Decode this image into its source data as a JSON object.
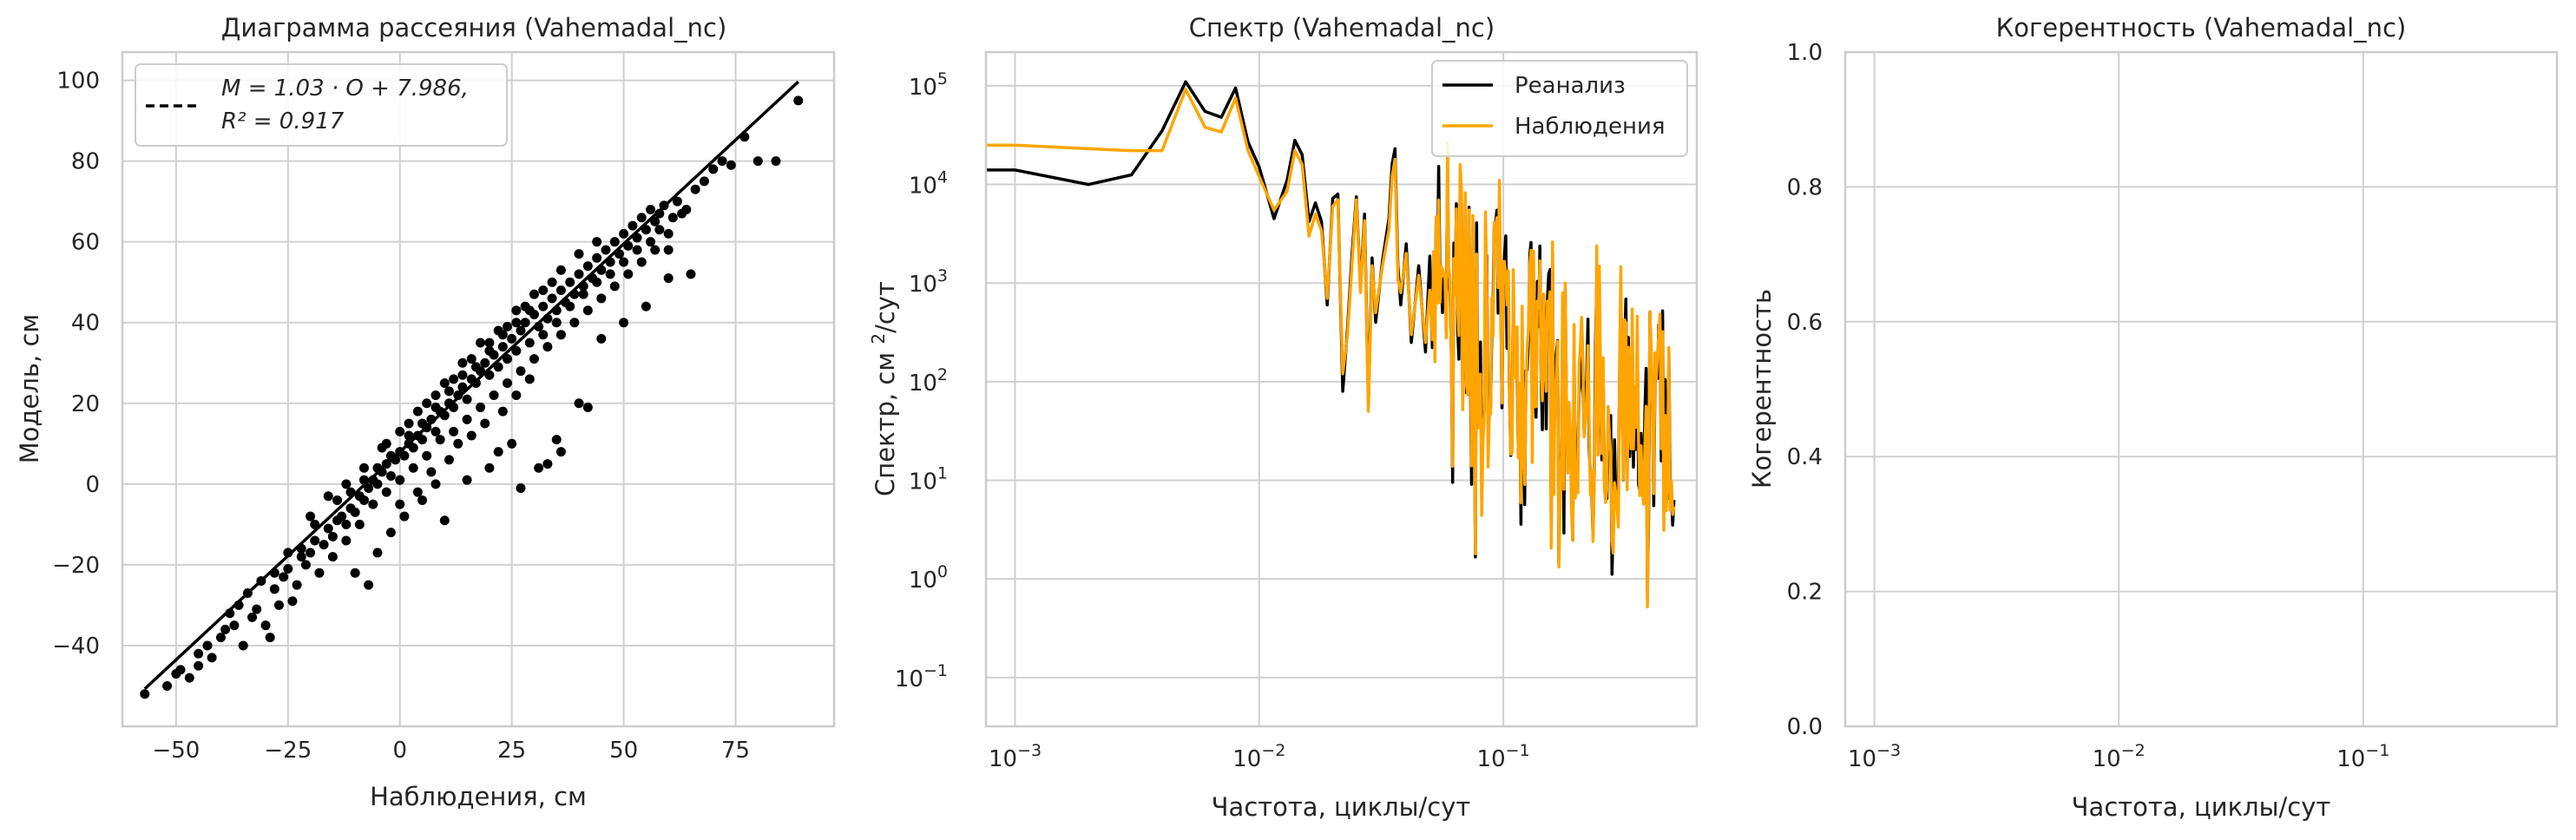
{
  "chart_data": [
    {
      "type": "scatter",
      "title": "Диаграмма рассеяния (Vahemadal_nc)",
      "xlabel": "Наблюдения, см",
      "ylabel": "Модель, см",
      "xlim": [
        -62,
        97
      ],
      "ylim": [
        -60,
        107
      ],
      "xticks": [
        -50,
        -25,
        0,
        25,
        50,
        75
      ],
      "yticks": [
        -40,
        -20,
        0,
        20,
        40,
        60,
        80,
        100
      ],
      "grid": true,
      "legend": {
        "placement": "top-left",
        "entries": [
          "M = 1.03 · O + 7.986,",
          "R² = 0.917"
        ]
      },
      "fit": {
        "slope": 1.03,
        "intercept": 7.986,
        "r2": 0.917,
        "x_range": [
          -57,
          89
        ]
      },
      "color": "#000000",
      "points": [
        [
          -57,
          -52
        ],
        [
          -52,
          -50
        ],
        [
          -50,
          -47
        ],
        [
          -49,
          -46
        ],
        [
          -47,
          -48
        ],
        [
          -45,
          -45
        ],
        [
          -43,
          -40
        ],
        [
          -42,
          -43
        ],
        [
          -39,
          -36
        ],
        [
          -37,
          -35
        ],
        [
          -36,
          -30
        ],
        [
          -34,
          -27
        ],
        [
          -32,
          -31
        ],
        [
          -31,
          -24
        ],
        [
          -29,
          -38
        ],
        [
          -28,
          -26
        ],
        [
          -26,
          -23
        ],
        [
          -25,
          -21
        ],
        [
          -23,
          -25
        ],
        [
          -22,
          -18
        ],
        [
          -20,
          -17
        ],
        [
          -19,
          -14
        ],
        [
          -17,
          -15
        ],
        [
          -16,
          -11
        ],
        [
          -15,
          -13
        ],
        [
          -14,
          -9
        ],
        [
          -13,
          -8
        ],
        [
          -12,
          -10
        ],
        [
          -11,
          -6
        ],
        [
          -10,
          -7
        ],
        [
          -9,
          -3
        ],
        [
          -8,
          -4
        ],
        [
          -7,
          -1
        ],
        [
          -6,
          1
        ],
        [
          -5,
          0
        ],
        [
          -4,
          3
        ],
        [
          -3,
          5
        ],
        [
          -2,
          2
        ],
        [
          -1,
          6
        ],
        [
          0,
          8
        ],
        [
          1,
          7
        ],
        [
          2,
          10
        ],
        [
          3,
          9
        ],
        [
          4,
          12
        ],
        [
          5,
          11
        ],
        [
          6,
          14
        ],
        [
          7,
          16
        ],
        [
          8,
          13
        ],
        [
          9,
          18
        ],
        [
          10,
          17
        ],
        [
          11,
          20
        ],
        [
          12,
          19
        ],
        [
          13,
          22
        ],
        [
          14,
          24
        ],
        [
          15,
          21
        ],
        [
          16,
          26
        ],
        [
          17,
          25
        ],
        [
          18,
          28
        ],
        [
          19,
          30
        ],
        [
          20,
          27
        ],
        [
          21,
          32
        ],
        [
          22,
          29
        ],
        [
          23,
          34
        ],
        [
          24,
          31
        ],
        [
          25,
          36
        ],
        [
          26,
          33
        ],
        [
          27,
          38
        ],
        [
          28,
          40
        ],
        [
          29,
          35
        ],
        [
          30,
          42
        ],
        [
          31,
          39
        ],
        [
          32,
          44
        ],
        [
          33,
          41
        ],
        [
          34,
          46
        ],
        [
          35,
          43
        ],
        [
          36,
          48
        ],
        [
          37,
          45
        ],
        [
          38,
          50
        ],
        [
          39,
          47
        ],
        [
          40,
          52
        ],
        [
          41,
          49
        ],
        [
          42,
          54
        ],
        [
          43,
          51
        ],
        [
          44,
          56
        ],
        [
          45,
          53
        ],
        [
          46,
          58
        ],
        [
          47,
          55
        ],
        [
          48,
          60
        ],
        [
          49,
          57
        ],
        [
          50,
          62
        ],
        [
          51,
          59
        ],
        [
          52,
          64
        ],
        [
          53,
          61
        ],
        [
          54,
          66
        ],
        [
          55,
          63
        ],
        [
          56,
          68
        ],
        [
          57,
          65
        ],
        [
          58,
          67
        ],
        [
          59,
          69
        ],
        [
          60,
          62
        ],
        [
          62,
          70
        ],
        [
          64,
          68
        ],
        [
          66,
          73
        ],
        [
          68,
          75
        ],
        [
          70,
          78
        ],
        [
          72,
          80
        ],
        [
          74,
          79
        ],
        [
          77,
          86
        ],
        [
          80,
          80
        ],
        [
          84,
          80
        ],
        [
          89,
          95
        ],
        [
          -35,
          -40
        ],
        [
          -30,
          -35
        ],
        [
          -27,
          -30
        ],
        [
          -24,
          -29
        ],
        [
          -21,
          -20
        ],
        [
          -18,
          -22
        ],
        [
          -15,
          -18
        ],
        [
          -12,
          -14
        ],
        [
          -9,
          -10
        ],
        [
          -6,
          -5
        ],
        [
          -3,
          -2
        ],
        [
          0,
          1
        ],
        [
          3,
          4
        ],
        [
          6,
          7
        ],
        [
          9,
          11
        ],
        [
          12,
          13
        ],
        [
          15,
          16
        ],
        [
          18,
          19
        ],
        [
          21,
          22
        ],
        [
          24,
          25
        ],
        [
          27,
          28
        ],
        [
          30,
          31
        ],
        [
          33,
          34
        ],
        [
          36,
          37
        ],
        [
          39,
          40
        ],
        [
          42,
          43
        ],
        [
          45,
          46
        ],
        [
          48,
          49
        ],
        [
          51,
          52
        ],
        [
          54,
          55
        ],
        [
          57,
          58
        ],
        [
          60,
          58
        ],
        [
          -20,
          -8
        ],
        [
          -16,
          -3
        ],
        [
          -12,
          0
        ],
        [
          -8,
          4
        ],
        [
          -4,
          9
        ],
        [
          0,
          13
        ],
        [
          4,
          18
        ],
        [
          8,
          22
        ],
        [
          12,
          26
        ],
        [
          16,
          31
        ],
        [
          20,
          35
        ],
        [
          24,
          39
        ],
        [
          28,
          44
        ],
        [
          32,
          48
        ],
        [
          36,
          53
        ],
        [
          40,
          57
        ],
        [
          44,
          60
        ],
        [
          -10,
          -22
        ],
        [
          -7,
          -25
        ],
        [
          -5,
          -17
        ],
        [
          -2,
          -12
        ],
        [
          1,
          -8
        ],
        [
          5,
          -4
        ],
        [
          8,
          0
        ],
        [
          10,
          -9
        ],
        [
          15,
          1
        ],
        [
          20,
          4
        ],
        [
          22,
          8
        ],
        [
          25,
          10
        ],
        [
          27,
          -1
        ],
        [
          31,
          4
        ],
        [
          33,
          5
        ],
        [
          35,
          11
        ],
        [
          36,
          8
        ],
        [
          40,
          20
        ],
        [
          42,
          19
        ],
        [
          45,
          36
        ],
        [
          50,
          40
        ],
        [
          55,
          44
        ],
        [
          60,
          51
        ],
        [
          65,
          52
        ],
        [
          -45,
          -42
        ],
        [
          -40,
          -38
        ],
        [
          -38,
          -32
        ],
        [
          -33,
          -33
        ],
        [
          -28,
          -22
        ],
        [
          -25,
          -17
        ],
        [
          -22,
          -16
        ],
        [
          -19,
          -10
        ],
        [
          -14,
          -4
        ],
        [
          -11,
          -2
        ],
        [
          -8,
          1
        ],
        [
          -5,
          4
        ],
        [
          -2,
          7
        ],
        [
          2,
          12
        ],
        [
          5,
          15
        ],
        [
          8,
          19
        ],
        [
          11,
          23
        ],
        [
          14,
          27
        ],
        [
          17,
          29
        ],
        [
          20,
          33
        ],
        [
          23,
          37
        ],
        [
          26,
          40
        ],
        [
          29,
          43
        ],
        [
          32,
          37
        ],
        [
          35,
          40
        ],
        [
          38,
          44
        ],
        [
          41,
          47
        ],
        [
          44,
          50
        ],
        [
          47,
          52
        ],
        [
          50,
          55
        ],
        [
          53,
          58
        ],
        [
          56,
          60
        ],
        [
          58,
          63
        ],
        [
          61,
          66
        ],
        [
          63,
          67
        ],
        [
          -3,
          10
        ],
        [
          2,
          15
        ],
        [
          6,
          20
        ],
        [
          10,
          25
        ],
        [
          14,
          30
        ],
        [
          18,
          35
        ],
        [
          22,
          38
        ],
        [
          26,
          43
        ],
        [
          30,
          47
        ],
        [
          34,
          50
        ],
        [
          0,
          -5
        ],
        [
          4,
          -2
        ],
        [
          7,
          3
        ],
        [
          11,
          6
        ],
        [
          13,
          10
        ],
        [
          16,
          12
        ],
        [
          19,
          15
        ],
        [
          23,
          18
        ],
        [
          26,
          22
        ],
        [
          29,
          26
        ]
      ]
    },
    {
      "type": "line",
      "title": "Спектр (Vahemadal_nc)",
      "xlabel": "Частота, циклы/сут",
      "ylabel": "Спектр, см²/сут",
      "xscale": "log",
      "yscale": "log",
      "xlim": [
        0.00076,
        0.62
      ],
      "ylim": [
        0.032,
        220000
      ],
      "xticks": [
        "10⁻³",
        "10⁻²",
        "10⁻¹"
      ],
      "yticks": [
        "10⁻¹",
        "10⁰",
        "10¹",
        "10²",
        "10³",
        "10⁴",
        "10⁵"
      ],
      "grid": true,
      "legend": {
        "placement": "top-right",
        "entries": [
          "Реанализ",
          "Наблюдения"
        ]
      },
      "series": [
        {
          "name": "Реанализ",
          "color": "#000000"
        },
        {
          "name": "Наблюдения",
          "color": "#ffa500"
        }
      ]
    },
    {
      "type": "line",
      "title": "Когерентность (Vahemadal_nc)",
      "xlabel": "Частота, циклы/сут",
      "ylabel": "Когерентность",
      "xscale": "log",
      "xlim": [
        0.00076,
        0.62
      ],
      "ylim": [
        0,
        1
      ],
      "xticks": [
        "10⁻³",
        "10⁻²",
        "10⁻¹"
      ],
      "yticks": [
        "0.0",
        "0.2",
        "0.4",
        "0.6",
        "0.8",
        "1.0"
      ],
      "grid": true,
      "series": []
    }
  ]
}
